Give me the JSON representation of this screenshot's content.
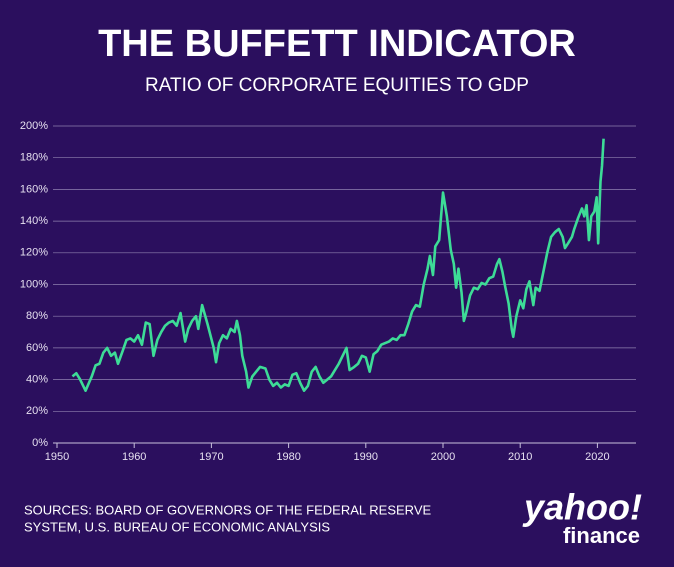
{
  "chart_data": {
    "type": "line",
    "title": "THE BUFFETT INDICATOR",
    "subtitle": "RATIO OF CORPORATE EQUITIES TO GDP",
    "source": "SOURCES: BOARD OF GOVERNORS OF THE FEDERAL RESERVE SYSTEM, U.S. BUREAU OF ECONOMIC ANALYSIS",
    "logo": {
      "brand": "yahoo!",
      "product": "finance"
    },
    "color": "#3ddc97",
    "grid": true,
    "xlim": [
      1950,
      2025
    ],
    "xticks": [
      1950,
      1960,
      1970,
      1980,
      1990,
      2000,
      2010,
      2020
    ],
    "ylim": [
      0,
      200
    ],
    "yticks": [
      {
        "value": 0,
        "label": "0%"
      },
      {
        "value": 20,
        "label": "20%"
      },
      {
        "value": 40,
        "label": "40%"
      },
      {
        "value": 60,
        "label": "60%"
      },
      {
        "value": 80,
        "label": "80%"
      },
      {
        "value": 100,
        "label": "100%"
      },
      {
        "value": 120,
        "label": "120%"
      },
      {
        "value": 140,
        "label": "140%"
      },
      {
        "value": 160,
        "label": "160%"
      },
      {
        "value": 180,
        "label": "180%"
      },
      {
        "value": 200,
        "label": "200%"
      }
    ],
    "x": [
      1952,
      1952.5,
      1953,
      1953.7,
      1954.5,
      1955,
      1955.5,
      1956,
      1956.5,
      1957,
      1957.5,
      1957.9,
      1958.5,
      1959,
      1959.5,
      1960,
      1960.5,
      1961,
      1961.5,
      1962,
      1962.5,
      1963,
      1963.5,
      1964,
      1964.5,
      1965,
      1965.5,
      1966,
      1966.6,
      1967,
      1967.5,
      1968,
      1968.3,
      1968.8,
      1969.5,
      1970.3,
      1970.6,
      1971,
      1971.5,
      1972,
      1972.5,
      1973,
      1973.3,
      1973.7,
      1974,
      1974.5,
      1974.8,
      1975.3,
      1975.8,
      1976.3,
      1977,
      1977.5,
      1978,
      1978.5,
      1979,
      1979.5,
      1980,
      1980.5,
      1981,
      1981.5,
      1982,
      1982.5,
      1983,
      1983.5,
      1984,
      1984.5,
      1985,
      1985.5,
      1986,
      1986.5,
      1987,
      1987.5,
      1987.9,
      1988.5,
      1989,
      1989.5,
      1990,
      1990.5,
      1991,
      1991.5,
      1992,
      1993,
      1993.5,
      1994,
      1994.5,
      1995,
      1995.5,
      1996,
      1996.5,
      1997,
      1997.5,
      1998,
      1998.3,
      1998.7,
      1999,
      1999.5,
      2000,
      2000.5,
      2001,
      2001.4,
      2001.7,
      2002,
      2002.4,
      2002.7,
      2003,
      2003.5,
      2004,
      2004.5,
      2005,
      2005.5,
      2006,
      2006.5,
      2007,
      2007.3,
      2007.7,
      2008,
      2008.5,
      2008.9,
      2009.1,
      2009.5,
      2010,
      2010.4,
      2010.8,
      2011.2,
      2011.7,
      2012,
      2012.5,
      2013,
      2013.5,
      2014,
      2014.5,
      2015,
      2015.5,
      2015.8,
      2016.2,
      2016.7,
      2017,
      2017.5,
      2018,
      2018.3,
      2018.6,
      2018.9,
      2019.2,
      2019.6,
      2019.9,
      2020.1,
      2020.4,
      2020.6,
      2020.8
    ],
    "values": [
      42,
      44,
      40,
      33,
      42,
      49,
      50,
      57,
      60,
      55,
      57,
      50,
      58,
      65,
      66,
      64,
      68,
      62,
      76,
      75,
      55,
      65,
      70,
      74,
      76,
      77,
      74,
      82,
      64,
      72,
      77,
      80,
      72,
      87,
      75,
      60,
      51,
      63,
      68,
      66,
      72,
      70,
      77,
      68,
      55,
      45,
      35,
      42,
      45,
      48,
      47,
      40,
      36,
      38,
      35,
      37,
      36,
      43,
      44,
      38,
      33,
      36,
      45,
      48,
      42,
      38,
      40,
      42,
      46,
      50,
      55,
      60,
      46,
      48,
      50,
      55,
      54,
      45,
      56,
      58,
      62,
      64,
      66,
      65,
      68,
      68,
      75,
      83,
      87,
      86,
      100,
      110,
      118,
      106,
      124,
      128,
      158,
      143,
      122,
      113,
      98,
      110,
      95,
      77,
      82,
      93,
      98,
      97,
      101,
      100,
      104,
      105,
      113,
      116,
      108,
      100,
      88,
      72,
      67,
      80,
      90,
      85,
      97,
      102,
      87,
      98,
      96,
      108,
      120,
      130,
      133,
      135,
      130,
      123,
      126,
      130,
      135,
      142,
      148,
      143,
      150,
      128,
      143,
      146,
      155,
      126,
      165,
      175,
      192
    ]
  }
}
